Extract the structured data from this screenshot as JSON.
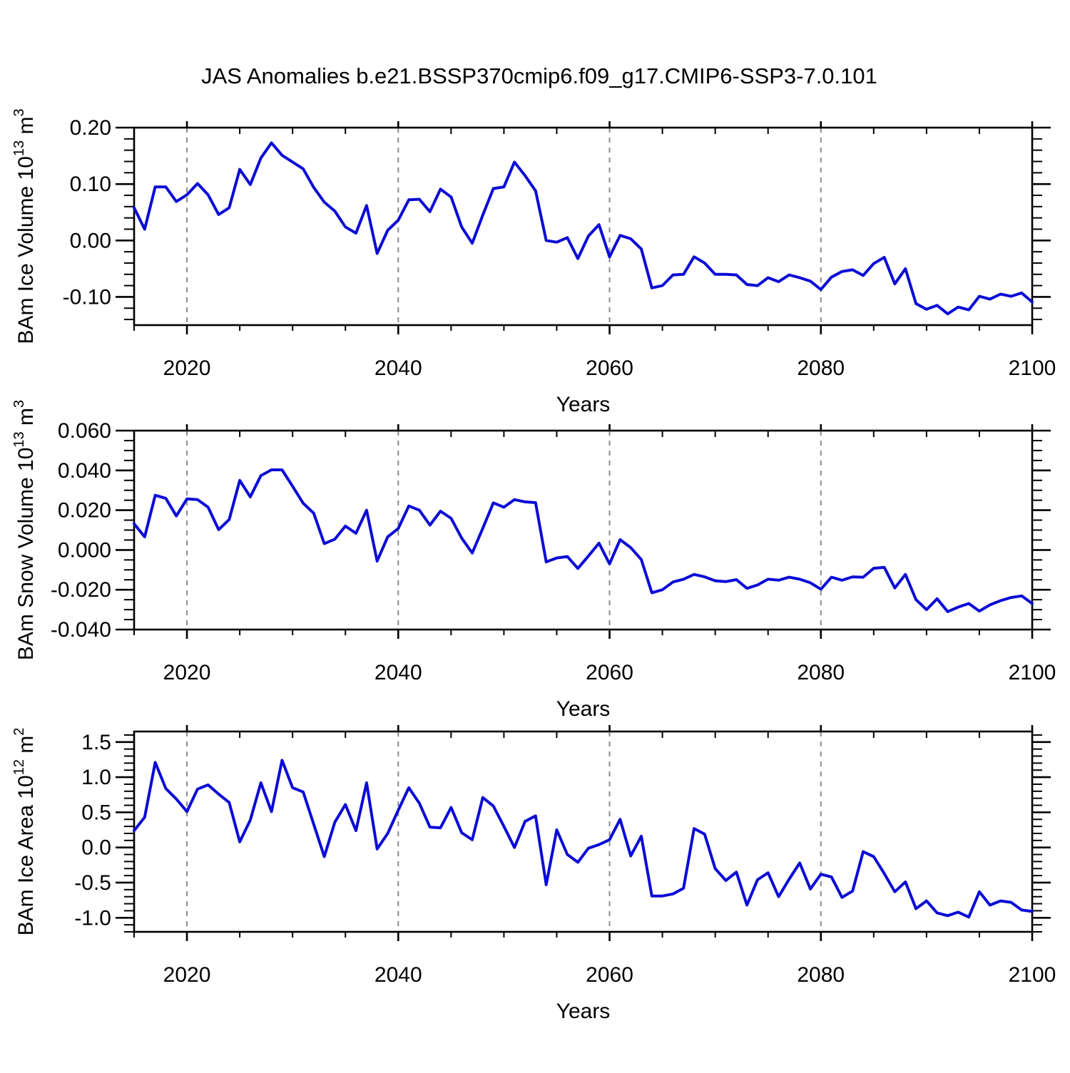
{
  "title": "JAS Anomalies b.e21.BSSP370cmip6.f09_g17.CMIP6-SSP3-7.0.101",
  "axis_color": "#000000",
  "grid_color": "#8c8c8c",
  "chart_data": [
    {
      "type": "line",
      "name": "bam-ice-volume",
      "xlabel": "Years",
      "ylabel": "BAm Ice Volume 10^13 m^3",
      "ylabel_parts": [
        {
          "t": "BAm Ice Volume 10"
        },
        {
          "t": "13",
          "sup": true
        },
        {
          "t": " m"
        },
        {
          "t": "3",
          "sup": true
        }
      ],
      "line_color": "#0b0bd6",
      "xlim": [
        2015,
        2100
      ],
      "ylim": [
        -0.15,
        0.2
      ],
      "x_start": 2015,
      "grid_years": [
        2020,
        2040,
        2060,
        2080
      ],
      "xticks": [
        {
          "v": 2020,
          "label": "2020"
        },
        {
          "v": 2040,
          "label": "2040"
        },
        {
          "v": 2060,
          "label": "2060"
        },
        {
          "v": 2080,
          "label": "2080"
        },
        {
          "v": 2100,
          "label": "2100"
        }
      ],
      "x_minor_step": 5,
      "yticks": [
        {
          "v": 0.2,
          "label": "0.20"
        },
        {
          "v": 0.1,
          "label": "0.10"
        },
        {
          "v": 0.0,
          "label": "0.00"
        },
        {
          "v": -0.1,
          "label": "-0.10"
        }
      ],
      "y_minor_step": 0.02,
      "values": [
        0.058,
        0.02,
        0.095,
        0.095,
        0.069,
        0.081,
        0.101,
        0.081,
        0.046,
        0.058,
        0.126,
        0.099,
        0.146,
        0.173,
        0.151,
        0.139,
        0.127,
        0.094,
        0.068,
        0.052,
        0.024,
        0.013,
        0.062,
        -0.023,
        0.018,
        0.036,
        0.072,
        0.073,
        0.051,
        0.091,
        0.077,
        0.024,
        -0.005,
        0.045,
        0.092,
        0.095,
        0.139,
        0.115,
        0.088,
        0.0,
        -0.003,
        0.005,
        -0.032,
        0.008,
        0.028,
        -0.029,
        0.009,
        0.003,
        -0.015,
        -0.084,
        -0.08,
        -0.061,
        -0.06,
        -0.029,
        -0.04,
        -0.06,
        -0.06,
        -0.061,
        -0.078,
        -0.08,
        -0.066,
        -0.073,
        -0.061,
        -0.066,
        -0.072,
        -0.087,
        -0.065,
        -0.055,
        -0.052,
        -0.062,
        -0.041,
        -0.03,
        -0.077,
        -0.05,
        -0.112,
        -0.122,
        -0.115,
        -0.13,
        -0.118,
        -0.123,
        -0.099,
        -0.104,
        -0.095,
        -0.099,
        -0.093,
        -0.109
      ]
    },
    {
      "type": "line",
      "name": "bam-snow-volume",
      "xlabel": "Years",
      "ylabel": "BAm Snow Volume 10^13 m^3",
      "ylabel_parts": [
        {
          "t": "BAm Snow Volume 10"
        },
        {
          "t": "13",
          "sup": true
        },
        {
          "t": " m"
        },
        {
          "t": "3",
          "sup": true
        }
      ],
      "line_color": "#0b0bd6",
      "xlim": [
        2015,
        2100
      ],
      "ylim": [
        -0.04,
        0.06
      ],
      "x_start": 2015,
      "grid_years": [
        2020,
        2040,
        2060,
        2080
      ],
      "xticks": [
        {
          "v": 2020,
          "label": "2020"
        },
        {
          "v": 2040,
          "label": "2040"
        },
        {
          "v": 2060,
          "label": "2060"
        },
        {
          "v": 2080,
          "label": "2080"
        },
        {
          "v": 2100,
          "label": "2100"
        }
      ],
      "x_minor_step": 5,
      "yticks": [
        {
          "v": 0.06,
          "label": "0.060"
        },
        {
          "v": 0.04,
          "label": "0.040"
        },
        {
          "v": 0.02,
          "label": "0.020"
        },
        {
          "v": 0.0,
          "label": "0.000"
        },
        {
          "v": -0.02,
          "label": "-0.020"
        },
        {
          "v": -0.04,
          "label": "-0.040"
        }
      ],
      "y_minor_step": 0.005,
      "values": [
        0.0132,
        0.0066,
        0.0275,
        0.026,
        0.0171,
        0.0257,
        0.0253,
        0.0215,
        0.0102,
        0.0153,
        0.035,
        0.0267,
        0.0374,
        0.0403,
        0.0403,
        0.032,
        0.0235,
        0.0185,
        0.0032,
        0.0054,
        0.012,
        0.0084,
        0.02,
        -0.0056,
        0.0066,
        0.0108,
        0.0221,
        0.02,
        0.0125,
        0.0195,
        0.0159,
        0.006,
        -0.0015,
        0.0109,
        0.0237,
        0.0215,
        0.0253,
        0.0242,
        0.0238,
        -0.006,
        -0.004,
        -0.0033,
        -0.0093,
        -0.003,
        0.0034,
        -0.007,
        0.0052,
        0.0012,
        -0.0048,
        -0.0215,
        -0.02,
        -0.0161,
        -0.0147,
        -0.0123,
        -0.0135,
        -0.0155,
        -0.0159,
        -0.0149,
        -0.0193,
        -0.0176,
        -0.0147,
        -0.0152,
        -0.0137,
        -0.0147,
        -0.0165,
        -0.0197,
        -0.0137,
        -0.0152,
        -0.0135,
        -0.0137,
        -0.0092,
        -0.0087,
        -0.0191,
        -0.0123,
        -0.025,
        -0.03,
        -0.0245,
        -0.031,
        -0.0287,
        -0.0269,
        -0.0307,
        -0.0276,
        -0.0255,
        -0.0239,
        -0.0231,
        -0.0269
      ]
    },
    {
      "type": "line",
      "name": "bam-ice-area",
      "xlabel": "Years",
      "ylabel": "BAm Ice Area 10^12 m^2",
      "ylabel_parts": [
        {
          "t": "BAm Ice Area 10"
        },
        {
          "t": "12",
          "sup": true
        },
        {
          "t": " m"
        },
        {
          "t": "2",
          "sup": true
        }
      ],
      "line_color": "#0b0bd6",
      "xlim": [
        2015,
        2100
      ],
      "ylim": [
        -1.2,
        1.65
      ],
      "x_start": 2015,
      "grid_years": [
        2020,
        2040,
        2060,
        2080
      ],
      "xticks": [
        {
          "v": 2020,
          "label": "2020"
        },
        {
          "v": 2040,
          "label": "2040"
        },
        {
          "v": 2060,
          "label": "2060"
        },
        {
          "v": 2080,
          "label": "2080"
        },
        {
          "v": 2100,
          "label": "2100"
        }
      ],
      "x_minor_step": 5,
      "yticks": [
        {
          "v": 1.5,
          "label": "1.5"
        },
        {
          "v": 1.0,
          "label": "1.0"
        },
        {
          "v": 0.5,
          "label": "0.5"
        },
        {
          "v": 0.0,
          "label": "0.0"
        },
        {
          "v": -0.5,
          "label": "-0.5"
        },
        {
          "v": -1.0,
          "label": "-1.0"
        }
      ],
      "y_minor_step": 0.1,
      "values": [
        0.24,
        0.43,
        1.21,
        0.84,
        0.69,
        0.51,
        0.83,
        0.89,
        0.76,
        0.64,
        0.08,
        0.39,
        0.92,
        0.51,
        1.24,
        0.85,
        0.79,
        0.33,
        -0.13,
        0.36,
        0.61,
        0.24,
        0.92,
        -0.02,
        0.2,
        0.53,
        0.85,
        0.63,
        0.29,
        0.28,
        0.57,
        0.21,
        0.11,
        0.71,
        0.59,
        0.3,
        0.0,
        0.37,
        0.45,
        -0.53,
        0.25,
        -0.1,
        -0.21,
        -0.01,
        0.04,
        0.11,
        0.4,
        -0.12,
        0.16,
        -0.69,
        -0.69,
        -0.66,
        -0.58,
        0.27,
        0.19,
        -0.3,
        -0.47,
        -0.35,
        -0.82,
        -0.46,
        -0.36,
        -0.7,
        -0.45,
        -0.22,
        -0.59,
        -0.38,
        -0.42,
        -0.71,
        -0.62,
        -0.06,
        -0.13,
        -0.37,
        -0.63,
        -0.49,
        -0.87,
        -0.76,
        -0.93,
        -0.97,
        -0.92,
        -0.99,
        -0.63,
        -0.82,
        -0.76,
        -0.78,
        -0.89,
        -0.91
      ]
    }
  ]
}
